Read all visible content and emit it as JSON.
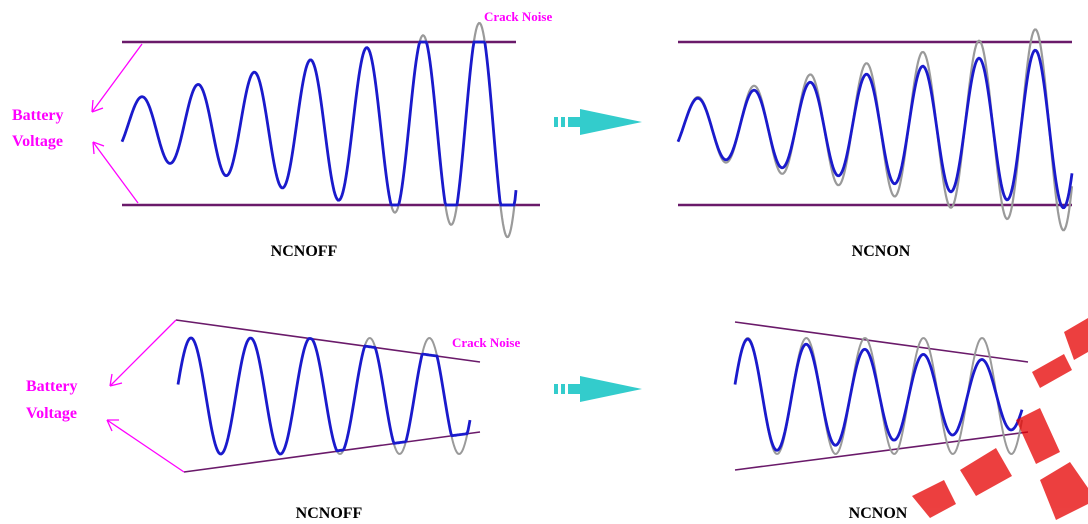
{
  "labels": {
    "crack_noise_top": "Crack Noise",
    "crack_noise_bottom": "Crack Noise",
    "battery_top": "Battery",
    "voltage_top": "Voltage",
    "battery_bottom": "Battery",
    "voltage_bottom": "Voltage",
    "caption_top_left": "NCNOFF",
    "caption_top_right": "NCNON",
    "caption_bottom_left": "NCNOFF",
    "caption_bottom_right": "NCNON"
  },
  "colors": {
    "wave": "#1a1acc",
    "noise": "#9a9a9a",
    "rail": "#6a1a6a",
    "annotation": "#ff00ff",
    "arrow": "#33cccc",
    "caption": "#000000",
    "watermark": "#e60000"
  }
}
